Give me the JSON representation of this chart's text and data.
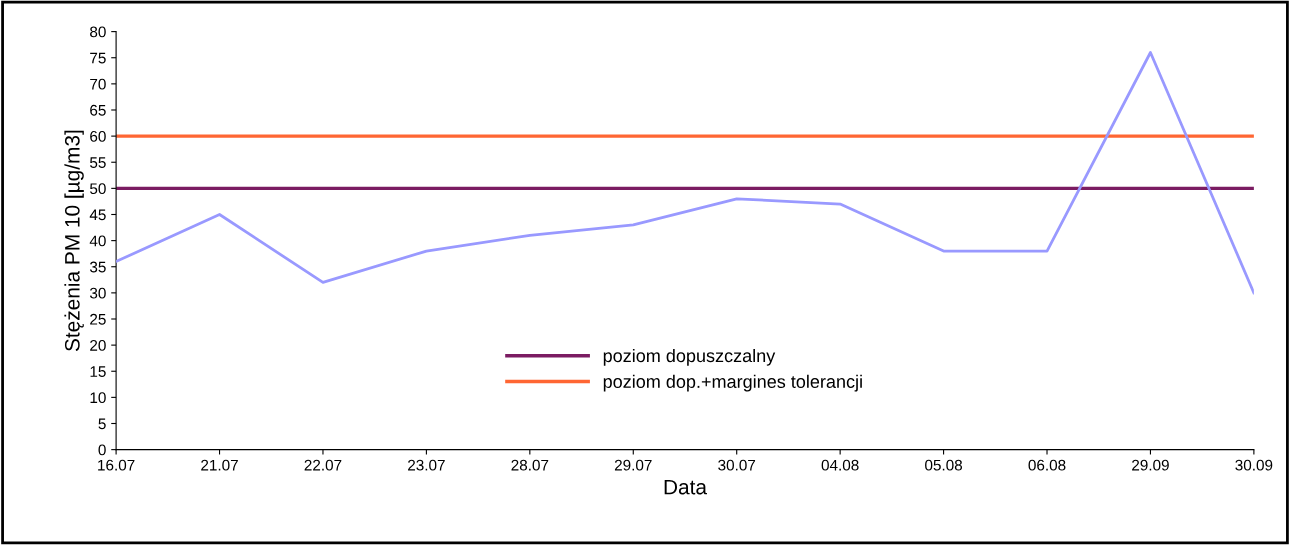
{
  "chart_data": {
    "type": "line",
    "xlabel": "Data",
    "ylabel": "Stężenia PM 10 [µg/m3]",
    "categories": [
      "16.07",
      "21.07",
      "22.07",
      "23.07",
      "28.07",
      "29.07",
      "30.07",
      "04.08",
      "05.08",
      "06.08",
      "29.09",
      "30.09"
    ],
    "series": [
      {
        "color": "#9999ff",
        "values": [
          36,
          45,
          32,
          38,
          41,
          43,
          48,
          47,
          38,
          38,
          76,
          30
        ]
      }
    ],
    "ylim": [
      0,
      80
    ],
    "yticks": [
      0,
      5,
      10,
      15,
      20,
      25,
      30,
      35,
      40,
      45,
      50,
      55,
      60,
      65,
      70,
      75,
      80
    ],
    "ref_lines": [
      {
        "axis": "y",
        "value": 50,
        "label": "poziom dopuszczalny",
        "color": "#7b1c62"
      },
      {
        "axis": "y",
        "value": 60,
        "label": "poziom dop.+margines tolerancji",
        "color": "#ff6633"
      }
    ],
    "grid": false,
    "legend": "bottom",
    "marker": "none",
    "line_style": "solid"
  }
}
